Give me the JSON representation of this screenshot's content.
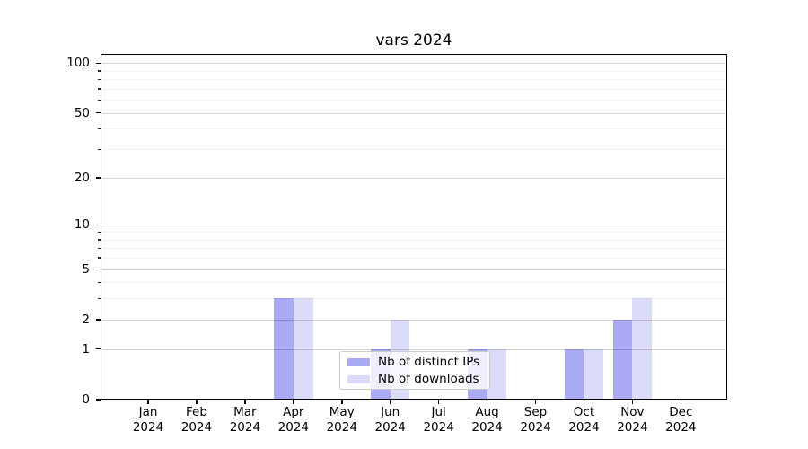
{
  "title": "vars 2024",
  "chart_data": {
    "type": "bar",
    "title": "vars 2024",
    "xlabel": "",
    "ylabel": "",
    "categories": [
      "Jan",
      "Feb",
      "Mar",
      "Apr",
      "May",
      "Jun",
      "Jul",
      "Aug",
      "Sep",
      "Oct",
      "Nov",
      "Dec"
    ],
    "year": "2024",
    "series": [
      {
        "name": "Nb of distinct IPs",
        "color": "#a9a9f4",
        "values": [
          0,
          0,
          0,
          3,
          0,
          1,
          0,
          1,
          0,
          1,
          2,
          0
        ]
      },
      {
        "name": "Nb of downloads",
        "color": "#dbdbfa",
        "values": [
          0,
          0,
          0,
          3,
          0,
          2,
          0,
          1,
          0,
          1,
          3,
          0
        ]
      }
    ],
    "yscale": "log1p",
    "ylim": [
      0,
      113.6
    ],
    "yticks": [
      0,
      1,
      2,
      5,
      10,
      20,
      50,
      100
    ],
    "ytick_labels": [
      "0",
      "1",
      "2",
      "5",
      "10",
      "20",
      "50",
      "100"
    ],
    "minor_yticks": [
      3,
      4,
      6,
      7,
      8,
      9,
      30,
      40,
      60,
      70,
      80,
      90
    ],
    "grid": true,
    "legend_position": "lower center"
  }
}
